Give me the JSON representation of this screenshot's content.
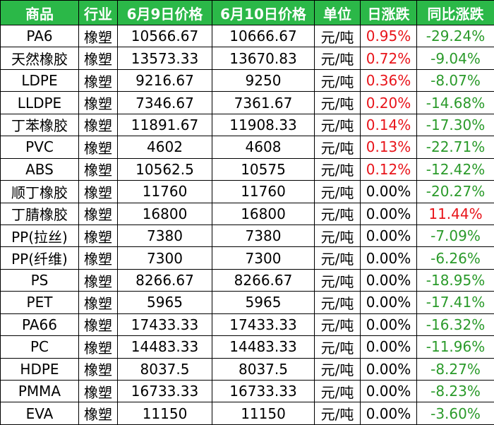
{
  "table": {
    "header": [
      "商品",
      "行业",
      "6月9日价格",
      "6月10日价格",
      "单位",
      "日涨跌",
      "同比涨跌"
    ],
    "rows": [
      [
        "PA6",
        "橡塑",
        "10566.67",
        "10666.67",
        "元/吨",
        "0.95%",
        "-29.24%"
      ],
      [
        "天然橡胶",
        "橡塑",
        "13573.33",
        "13670.83",
        "元/吨",
        "0.72%",
        "-9.04%"
      ],
      [
        "LDPE",
        "橡塑",
        "9216.67",
        "9250",
        "元/吨",
        "0.36%",
        "-8.07%"
      ],
      [
        "LLDPE",
        "橡塑",
        "7346.67",
        "7361.67",
        "元/吨",
        "0.20%",
        "-14.68%"
      ],
      [
        "丁苯橡胶",
        "橡塑",
        "11891.67",
        "11908.33",
        "元/吨",
        "0.14%",
        "-17.30%"
      ],
      [
        "PVC",
        "橡塑",
        "4602",
        "4608",
        "元/吨",
        "0.13%",
        "-22.71%"
      ],
      [
        "ABS",
        "橡塑",
        "10562.5",
        "10575",
        "元/吨",
        "0.12%",
        "-12.42%"
      ],
      [
        "顺丁橡胶",
        "橡塑",
        "11760",
        "11760",
        "元/吨",
        "0.00%",
        "-20.27%"
      ],
      [
        "丁腈橡胶",
        "橡塑",
        "16800",
        "16800",
        "元/吨",
        "0.00%",
        "11.44%"
      ],
      [
        "PP(拉丝)",
        "橡塑",
        "7380",
        "7380",
        "元/吨",
        "0.00%",
        "-7.09%"
      ],
      [
        "PP(纤维)",
        "橡塑",
        "7300",
        "7300",
        "元/吨",
        "0.00%",
        "-6.26%"
      ],
      [
        "PS",
        "橡塑",
        "8266.67",
        "8266.67",
        "元/吨",
        "0.00%",
        "-18.95%"
      ],
      [
        "PET",
        "橡塑",
        "5965",
        "5965",
        "元/吨",
        "0.00%",
        "-17.41%"
      ],
      [
        "PA66",
        "橡塑",
        "17433.33",
        "17433.33",
        "元/吨",
        "0.00%",
        "-16.32%"
      ],
      [
        "PC",
        "橡塑",
        "14483.33",
        "14483.33",
        "元/吨",
        "0.00%",
        "-11.96%"
      ],
      [
        "HDPE",
        "橡塑",
        "8037.5",
        "8037.5",
        "元/吨",
        "0.00%",
        "-8.27%"
      ],
      [
        "PMMA",
        "橡塑",
        "16733.33",
        "16733.33",
        "元/吨",
        "0.00%",
        "-8.23%"
      ],
      [
        "EVA",
        "橡塑",
        "11150",
        "11150",
        "元/吨",
        "0.00%",
        "-3.60%"
      ]
    ]
  }
}
